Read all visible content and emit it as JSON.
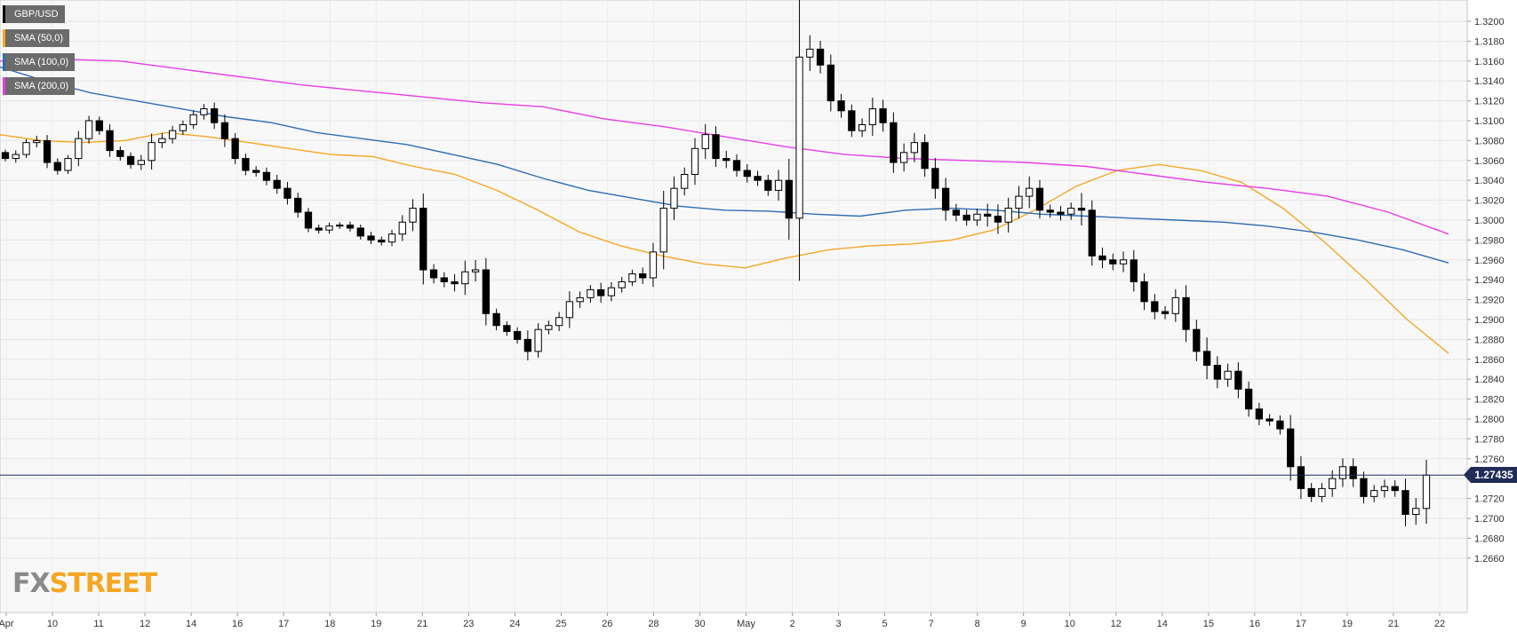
{
  "legend": [
    {
      "label": "GBP/USD",
      "color": "#000000"
    },
    {
      "label": "SMA (50,0)",
      "color": "#f5a623"
    },
    {
      "label": "SMA (100,0)",
      "color": "#2e6db4"
    },
    {
      "label": "SMA (200,0)",
      "color": "#e63de6"
    }
  ],
  "last_price_label": "1.27435",
  "watermark": {
    "fx": "FX",
    "street": "STREET"
  },
  "chart_data": {
    "type": "candlestick",
    "symbol": "GBP/USD",
    "grid": true,
    "ylim": [
      1.2646,
      1.3208
    ],
    "y_ticks": [
      "1.3200",
      "1.3180",
      "1.3160",
      "1.3140",
      "1.3120",
      "1.3100",
      "1.3080",
      "1.3060",
      "1.3040",
      "1.3020",
      "1.3000",
      "1.2980",
      "1.2960",
      "1.2940",
      "1.2920",
      "1.2900",
      "1.2880",
      "1.2860",
      "1.2840",
      "1.2820",
      "1.2800",
      "1.2780",
      "1.2760",
      "1.2740",
      "1.2720",
      "1.2700",
      "1.2680",
      "1.2660"
    ],
    "x_ticks": [
      "Apr",
      "10",
      "11",
      "12",
      "14",
      "16",
      "17",
      "18",
      "19",
      "21",
      "23",
      "24",
      "25",
      "26",
      "28",
      "30",
      "May",
      "2",
      "3",
      "5",
      "7",
      "8",
      "9",
      "10",
      "12",
      "14",
      "15",
      "16",
      "17",
      "19",
      "21",
      "22"
    ],
    "last_price": 1.27435,
    "closes": [
      1.3062,
      1.3066,
      1.3078,
      1.308,
      1.3058,
      1.305,
      1.3062,
      1.3082,
      1.31,
      1.309,
      1.307,
      1.3064,
      1.3056,
      1.306,
      1.3078,
      1.3082,
      1.309,
      1.3096,
      1.3106,
      1.3112,
      1.3098,
      1.3082,
      1.3062,
      1.305,
      1.3048,
      1.304,
      1.3032,
      1.3022,
      1.3008,
      1.2992,
      1.299,
      1.2994,
      1.2995,
      1.2992,
      1.2984,
      1.298,
      1.2978,
      1.2986,
      1.2998,
      1.3012,
      1.295,
      1.2942,
      1.2938,
      1.2936,
      1.2948,
      1.295,
      1.2906,
      1.2894,
      1.2888,
      1.288,
      1.2868,
      1.289,
      1.2894,
      1.2902,
      1.2918,
      1.2922,
      1.293,
      1.2924,
      1.2932,
      1.2938,
      1.2946,
      1.2942,
      1.2968,
      1.3012,
      1.3032,
      1.3046,
      1.3072,
      1.3086,
      1.3062,
      1.306,
      1.305,
      1.3044,
      1.304,
      1.303,
      1.304,
      1.3002,
      1.3164,
      1.3172,
      1.3156,
      1.312,
      1.311,
      1.309,
      1.3096,
      1.3112,
      1.3098,
      1.3058,
      1.3068,
      1.3078,
      1.3052,
      1.3032,
      1.301,
      1.3005,
      1.3,
      1.3006,
      1.3004,
      1.2998,
      1.3012,
      1.3024,
      1.3032,
      1.301,
      1.3008,
      1.3006,
      1.3012,
      1.301,
      1.2964,
      1.296,
      1.2956,
      1.296,
      1.2938,
      1.2918,
      1.2908,
      1.2906,
      1.2922,
      1.289,
      1.2868,
      1.2854,
      1.284,
      1.2848,
      1.283,
      1.281,
      1.28,
      1.2798,
      1.279,
      1.2752,
      1.273,
      1.2722,
      1.273,
      1.274,
      1.2752,
      1.274,
      1.2722,
      1.2728,
      1.2732,
      1.2728,
      1.2704,
      1.271,
      1.27435
    ],
    "candle_ranges": [
      0.0008,
      0.0012,
      0.001,
      0.0014,
      0.0016,
      0.0012,
      0.001,
      0.0022,
      0.0014,
      0.0012,
      0.0018,
      0.0012,
      0.0012,
      0.0016,
      0.0026,
      0.0016,
      0.0014,
      0.0012,
      0.0012,
      0.0014,
      0.0018,
      0.0024,
      0.0016,
      0.0014,
      0.0012,
      0.0014,
      0.0016,
      0.0018,
      0.0016,
      0.0012,
      0.001,
      0.001,
      0.0008,
      0.001,
      0.001,
      0.0012,
      0.001,
      0.0012,
      0.002,
      0.0026,
      0.0042,
      0.0016,
      0.0016,
      0.0022,
      0.0032,
      0.0028,
      0.0034,
      0.0014,
      0.0012,
      0.0012,
      0.0026,
      0.0018,
      0.0014,
      0.0016,
      0.003,
      0.0018,
      0.0014,
      0.002,
      0.0016,
      0.0014,
      0.0012,
      0.0018,
      0.0026,
      0.005,
      0.0034,
      0.002,
      0.003,
      0.003,
      0.0024,
      0.0022,
      0.0018,
      0.0018,
      0.0016,
      0.0016,
      0.003,
      0.0062,
      0.018,
      0.004,
      0.0024,
      0.003,
      0.002,
      0.0018,
      0.0018,
      0.0032,
      0.0026,
      0.003,
      0.0026,
      0.0028,
      0.0024,
      0.003,
      0.003,
      0.0018,
      0.0016,
      0.0016,
      0.003,
      0.0034,
      0.003,
      0.003,
      0.0034,
      0.0024,
      0.0016,
      0.0018,
      0.0016,
      0.0044,
      0.0028,
      0.0024,
      0.0018,
      0.0024,
      0.0028,
      0.0024,
      0.0022,
      0.0016,
      0.0024,
      0.0036,
      0.0028,
      0.004,
      0.0026,
      0.0022,
      0.0026,
      0.0022,
      0.0018,
      0.0014,
      0.0016,
      0.004,
      0.003,
      0.0016,
      0.0016,
      0.0024,
      0.0024,
      0.0024,
      0.002,
      0.0016,
      0.002,
      0.0018,
      0.0034,
      0.003,
      0.0044
    ],
    "series": [
      {
        "name": "SMA (50,0)",
        "color": "#f5a623",
        "points": [
          1.3086,
          1.308,
          1.3078,
          1.308,
          1.3088,
          1.3084,
          1.3078,
          1.3072,
          1.3066,
          1.3064,
          1.3054,
          1.3046,
          1.303,
          1.301,
          1.2988,
          1.2974,
          1.2964,
          1.2956,
          1.2952,
          1.2962,
          1.297,
          1.2974,
          1.2976,
          1.298,
          1.299,
          1.301,
          1.3034,
          1.305,
          1.3056,
          1.305,
          1.3038,
          1.3012,
          1.2978,
          1.294,
          1.29,
          1.2866
        ]
      },
      {
        "name": "SMA (100,0)",
        "color": "#2e6db4",
        "points": [
          1.3154,
          1.314,
          1.3128,
          1.312,
          1.3112,
          1.3104,
          1.3098,
          1.3088,
          1.3082,
          1.3076,
          1.3066,
          1.3056,
          1.3042,
          1.303,
          1.3022,
          1.3014,
          1.301,
          1.3009,
          1.3006,
          1.3004,
          1.301,
          1.3012,
          1.301,
          1.3006,
          1.3004,
          1.3002,
          1.3,
          1.2998,
          1.2994,
          1.2988,
          1.298,
          1.297,
          1.2957
        ]
      },
      {
        "name": "SMA (200,0)",
        "color": "#e63de6",
        "points": [
          1.316,
          1.3162,
          1.316,
          1.3152,
          1.3144,
          1.3136,
          1.313,
          1.3124,
          1.3118,
          1.3114,
          1.3102,
          1.3094,
          1.3084,
          1.3074,
          1.3066,
          1.3062,
          1.306,
          1.3058,
          1.3054,
          1.3046,
          1.3038,
          1.3032,
          1.3024,
          1.3008,
          1.2986
        ]
      }
    ]
  }
}
